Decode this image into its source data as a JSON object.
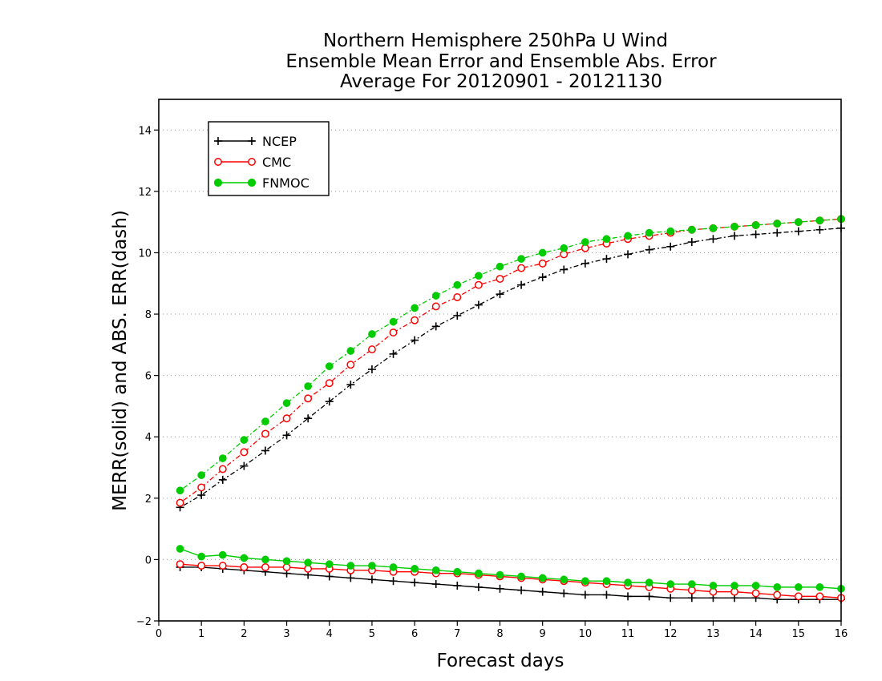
{
  "chart_data": {
    "type": "line",
    "title": [
      "Northern Hemisphere 250hPa U Wind",
      "Ensemble Mean Error and Ensemble Abs. Error",
      "Average For 20120901 - 20121130"
    ],
    "xlabel": "Forecast days",
    "ylabel": "MERR(solid) and ABS. ERR(dash)",
    "xlim": [
      0,
      16
    ],
    "ylim": [
      -2,
      15
    ],
    "xticks": [
      0,
      1,
      2,
      3,
      4,
      5,
      6,
      7,
      8,
      9,
      10,
      11,
      12,
      13,
      14,
      15,
      16
    ],
    "xtick_labels": [
      "0",
      "1",
      "2",
      "3",
      "4",
      "5",
      "6",
      "7",
      "8",
      "9",
      "10",
      "11",
      "12",
      "13",
      "14",
      "15",
      "16"
    ],
    "yticks": [
      -2,
      0,
      2,
      4,
      6,
      8,
      10,
      12,
      14
    ],
    "ytick_labels": [
      "−2",
      "0",
      "2",
      "4",
      "6",
      "8",
      "10",
      "12",
      "14"
    ],
    "grid": "horizontal dotted",
    "legend_position": "top-left",
    "x": [
      0.5,
      1,
      1.5,
      2,
      2.5,
      3,
      3.5,
      4,
      4.5,
      5,
      5.5,
      6,
      6.5,
      7,
      7.5,
      8,
      8.5,
      9,
      9.5,
      10,
      10.5,
      11,
      11.5,
      12,
      12.5,
      13,
      13.5,
      14,
      14.5,
      15,
      15.5,
      16
    ],
    "series": [
      {
        "name": "NCEP",
        "color": "#000000",
        "marker": "plus",
        "merr": [
          -0.25,
          -0.25,
          -0.3,
          -0.35,
          -0.4,
          -0.45,
          -0.5,
          -0.55,
          -0.6,
          -0.65,
          -0.7,
          -0.75,
          -0.8,
          -0.85,
          -0.9,
          -0.95,
          -1.0,
          -1.05,
          -1.1,
          -1.15,
          -1.15,
          -1.2,
          -1.2,
          -1.25,
          -1.25,
          -1.25,
          -1.25,
          -1.25,
          -1.3,
          -1.3,
          -1.3,
          -1.3
        ],
        "abs_err": [
          1.7,
          2.1,
          2.6,
          3.05,
          3.55,
          4.05,
          4.6,
          5.15,
          5.7,
          6.2,
          6.7,
          7.15,
          7.6,
          7.95,
          8.3,
          8.65,
          8.95,
          9.2,
          9.45,
          9.65,
          9.8,
          9.95,
          10.1,
          10.2,
          10.35,
          10.45,
          10.55,
          10.6,
          10.65,
          10.7,
          10.75,
          10.8
        ]
      },
      {
        "name": "CMC",
        "color": "#ff0000",
        "marker": "circle-open",
        "merr": [
          -0.15,
          -0.2,
          -0.2,
          -0.25,
          -0.25,
          -0.25,
          -0.3,
          -0.3,
          -0.35,
          -0.35,
          -0.4,
          -0.4,
          -0.45,
          -0.45,
          -0.5,
          -0.55,
          -0.6,
          -0.65,
          -0.7,
          -0.75,
          -0.8,
          -0.85,
          -0.9,
          -0.95,
          -1.0,
          -1.05,
          -1.05,
          -1.1,
          -1.15,
          -1.2,
          -1.2,
          -1.25
        ],
        "abs_err": [
          1.85,
          2.35,
          2.95,
          3.5,
          4.1,
          4.6,
          5.25,
          5.75,
          6.35,
          6.85,
          7.4,
          7.8,
          8.25,
          8.55,
          8.95,
          9.15,
          9.5,
          9.65,
          9.95,
          10.15,
          10.3,
          10.45,
          10.55,
          10.65,
          10.75,
          10.8,
          10.85,
          10.9,
          10.95,
          11.0,
          11.05,
          11.1
        ]
      },
      {
        "name": "FNMOC",
        "color": "#00cc00",
        "marker": "circle-filled",
        "merr": [
          0.35,
          0.1,
          0.15,
          0.05,
          0.0,
          -0.05,
          -0.1,
          -0.15,
          -0.2,
          -0.2,
          -0.25,
          -0.3,
          -0.35,
          -0.4,
          -0.45,
          -0.5,
          -0.55,
          -0.6,
          -0.65,
          -0.7,
          -0.7,
          -0.75,
          -0.75,
          -0.8,
          -0.8,
          -0.85,
          -0.85,
          -0.85,
          -0.9,
          -0.9,
          -0.9,
          -0.95
        ],
        "abs_err": [
          2.25,
          2.75,
          3.3,
          3.9,
          4.5,
          5.1,
          5.65,
          6.3,
          6.8,
          7.35,
          7.75,
          8.2,
          8.6,
          8.95,
          9.25,
          9.55,
          9.8,
          10.0,
          10.15,
          10.35,
          10.45,
          10.55,
          10.65,
          10.7,
          10.75,
          10.8,
          10.85,
          10.9,
          10.95,
          11.0,
          11.05,
          11.1
        ]
      }
    ]
  }
}
